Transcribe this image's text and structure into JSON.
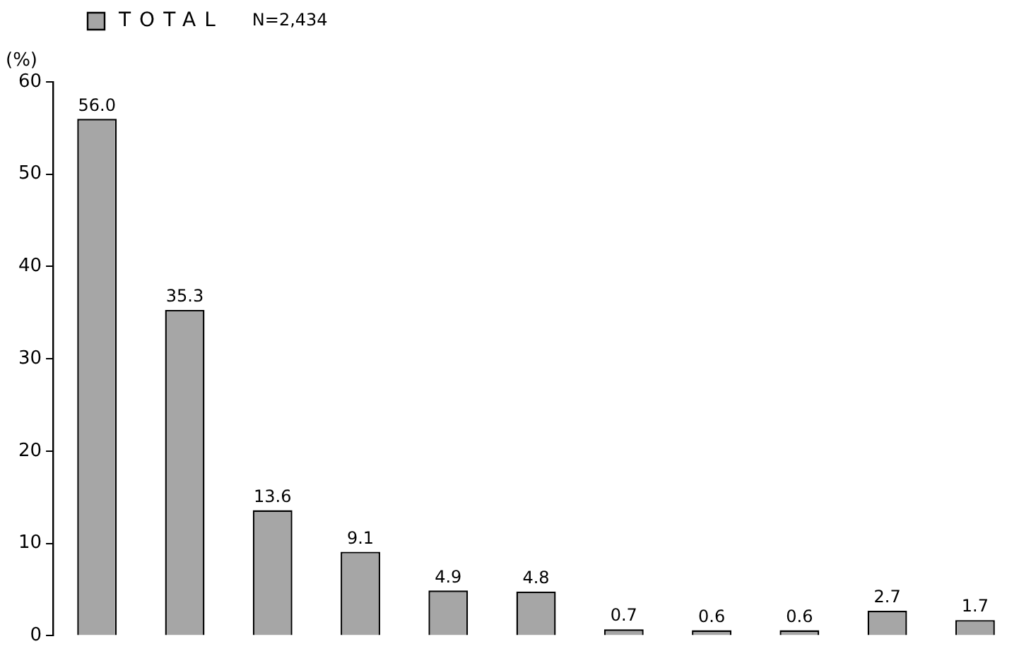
{
  "chart_data": {
    "type": "bar",
    "ylabel": "(%)",
    "categories": [
      null,
      null,
      null,
      null,
      null,
      null,
      null,
      null,
      null,
      null,
      null
    ],
    "series": [
      {
        "name": "TOTAL",
        "color": "#a6a6a6",
        "values": [
          56.0,
          35.3,
          13.6,
          9.1,
          4.9,
          4.8,
          0.7,
          0.6,
          0.6,
          2.7,
          1.7
        ],
        "value_labels": [
          "56.0",
          "35.3",
          "13.6",
          "9.1",
          "4.9",
          "4.8",
          "0.7",
          "0.6",
          "0.6",
          "2.7",
          "1.7"
        ]
      }
    ],
    "ylim": [
      0,
      60
    ],
    "yticks": [
      0,
      10,
      20,
      30,
      40,
      50,
      60
    ],
    "legend": "top left",
    "grid": false,
    "annotations": [
      "N=2,434"
    ]
  }
}
